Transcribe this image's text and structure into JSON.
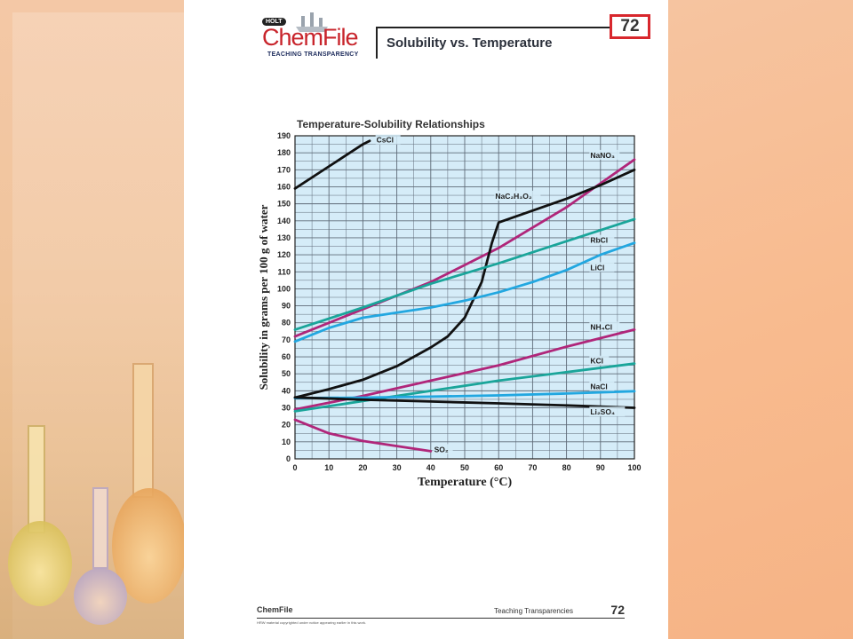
{
  "logo": {
    "holt": "HOLT",
    "brand": "ChemFile",
    "subtitle": "TEACHING TRANSPARENCY"
  },
  "header": {
    "title": "Solubility vs. Temperature",
    "number": "72"
  },
  "footer": {
    "brand": "ChemFile",
    "section": "Teaching Transparencies",
    "page_number": "72",
    "copyright": "HRW material copyrighted under notice appearing earlier in this work."
  },
  "colors": {
    "black": "#111111",
    "magenta": "#b0267a",
    "teal": "#1aa59a",
    "blue": "#22a7e0",
    "grid_bg": "#d5ecf8",
    "badge_red": "#d8272d"
  },
  "chart_data": {
    "type": "line",
    "title": "Temperature-Solubility Relationships",
    "xlabel": "Temperature (°C)",
    "ylabel": "Solubility in grams per 100 g of water",
    "xlim": [
      0,
      100
    ],
    "ylim": [
      0,
      190
    ],
    "xticks": [
      0,
      10,
      20,
      30,
      40,
      50,
      60,
      70,
      80,
      90,
      100
    ],
    "yticks": [
      0,
      10,
      20,
      30,
      40,
      50,
      60,
      70,
      80,
      90,
      100,
      110,
      120,
      130,
      140,
      150,
      160,
      170,
      180,
      190
    ],
    "grid": true,
    "series": [
      {
        "name": "CsCl",
        "color": "#111111",
        "label_pos": [
          24,
          186
        ],
        "points": [
          [
            0,
            159
          ],
          [
            10,
            172
          ],
          [
            20,
            185
          ],
          [
            22,
            187
          ]
        ]
      },
      {
        "name": "NaNO₃",
        "color": "#b0267a",
        "label_pos": [
          87,
          177
        ],
        "points": [
          [
            0,
            72
          ],
          [
            20,
            88
          ],
          [
            40,
            104
          ],
          [
            60,
            124
          ],
          [
            80,
            148
          ],
          [
            90,
            162
          ],
          [
            100,
            176
          ]
        ]
      },
      {
        "name": "NaC₂H₃O₂",
        "color": "#111111",
        "label_pos": [
          59,
          153
        ],
        "points": [
          [
            0,
            36
          ],
          [
            10,
            41
          ],
          [
            20,
            46.5
          ],
          [
            30,
            54.5
          ],
          [
            40,
            65.5
          ],
          [
            45,
            72
          ],
          [
            50,
            83
          ],
          [
            55,
            104
          ],
          [
            58,
            127
          ],
          [
            60,
            139
          ],
          [
            70,
            146
          ],
          [
            80,
            153
          ],
          [
            90,
            161
          ],
          [
            100,
            170
          ]
        ]
      },
      {
        "name": "RbCl",
        "color": "#1aa59a",
        "label_pos": [
          87,
          127
        ],
        "points": [
          [
            0,
            76
          ],
          [
            20,
            89
          ],
          [
            40,
            103
          ],
          [
            60,
            115
          ],
          [
            80,
            128
          ],
          [
            100,
            141
          ]
        ]
      },
      {
        "name": "LiCl",
        "color": "#22a7e0",
        "label_pos": [
          87,
          111
        ],
        "points": [
          [
            0,
            69
          ],
          [
            10,
            77
          ],
          [
            20,
            83
          ],
          [
            30,
            86
          ],
          [
            40,
            89
          ],
          [
            50,
            93
          ],
          [
            60,
            98
          ],
          [
            70,
            104
          ],
          [
            80,
            111
          ],
          [
            90,
            120
          ],
          [
            100,
            127
          ]
        ]
      },
      {
        "name": "NH₄Cl",
        "color": "#b0267a",
        "label_pos": [
          87,
          76
        ],
        "points": [
          [
            0,
            29
          ],
          [
            20,
            37
          ],
          [
            40,
            46
          ],
          [
            60,
            55
          ],
          [
            80,
            66
          ],
          [
            100,
            76
          ]
        ]
      },
      {
        "name": "KCl",
        "color": "#1aa59a",
        "label_pos": [
          87,
          56
        ],
        "points": [
          [
            0,
            28
          ],
          [
            20,
            34
          ],
          [
            40,
            40
          ],
          [
            60,
            46
          ],
          [
            80,
            51
          ],
          [
            100,
            56
          ]
        ]
      },
      {
        "name": "NaCl",
        "color": "#22a7e0",
        "label_pos": [
          87,
          41
        ],
        "points": [
          [
            0,
            35.7
          ],
          [
            20,
            36
          ],
          [
            40,
            36.6
          ],
          [
            60,
            37.3
          ],
          [
            80,
            38.4
          ],
          [
            100,
            39.8
          ]
        ]
      },
      {
        "name": "Li₂SO₄",
        "color": "#111111",
        "label_pos": [
          87,
          26
        ],
        "points": [
          [
            0,
            36.1
          ],
          [
            20,
            34.8
          ],
          [
            40,
            33.7
          ],
          [
            60,
            32.6
          ],
          [
            80,
            31.4
          ],
          [
            100,
            30
          ]
        ]
      },
      {
        "name": "SO₂",
        "color": "#b0267a",
        "label_pos": [
          41,
          4
        ],
        "points": [
          [
            0,
            23
          ],
          [
            10,
            15
          ],
          [
            20,
            10.5
          ],
          [
            30,
            7.5
          ],
          [
            40,
            4.5
          ]
        ]
      }
    ]
  }
}
